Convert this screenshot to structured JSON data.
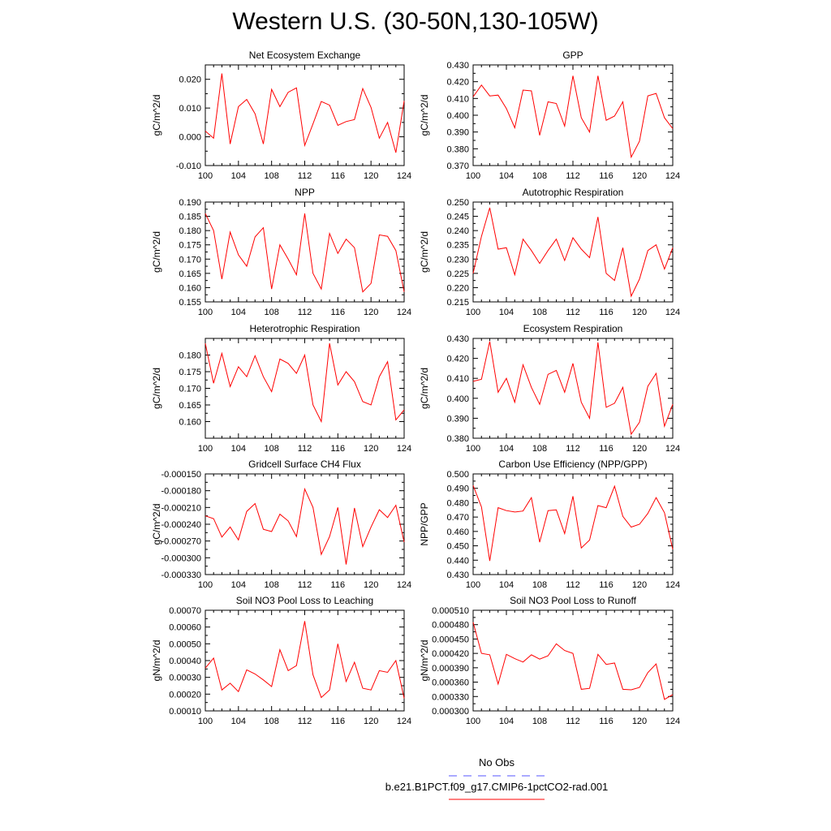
{
  "title": "Western U.S. (30-50N,130-105W)",
  "legend": [
    {
      "label": "No Obs",
      "color": "#5555ff",
      "dash": true
    },
    {
      "label": "b.e21.B1PCT.f09_g17.CMIP6-1pctCO2-rad.001",
      "color": "#ff0000",
      "dash": false
    }
  ],
  "chart_data": [
    {
      "type": "line",
      "title": "Net Ecosystem Exchange",
      "ylabel": "gC/m^2/d",
      "xlabel": "",
      "xlim": [
        100,
        124
      ],
      "ylim": [
        -0.01,
        0.025
      ],
      "xticks": [
        100,
        104,
        108,
        112,
        116,
        120,
        124
      ],
      "yticks": [
        -0.01,
        0.0,
        0.01,
        0.02
      ],
      "ytick_labels": [
        "-0.010",
        "0.000",
        "0.010",
        "0.020"
      ],
      "series": [
        {
          "color": "#ff0000",
          "x": [
            100,
            101,
            102,
            103,
            104,
            105,
            106,
            107,
            108,
            109,
            110,
            111,
            112,
            113,
            114,
            115,
            116,
            117,
            118,
            119,
            120,
            121,
            122,
            123,
            124
          ],
          "y": [
            0.002,
            -0.0005,
            0.022,
            -0.0025,
            0.0105,
            0.013,
            0.008,
            -0.0025,
            0.0165,
            0.0105,
            0.0155,
            0.017,
            -0.003,
            0.0045,
            0.0123,
            0.011,
            0.004,
            0.0053,
            0.006,
            0.0168,
            0.0102,
            -0.0005,
            0.005,
            -0.0055,
            0.0125
          ]
        }
      ]
    },
    {
      "type": "line",
      "title": "GPP",
      "ylabel": "gC/m^2/d",
      "xlabel": "",
      "xlim": [
        100,
        124
      ],
      "ylim": [
        0.37,
        0.43
      ],
      "xticks": [
        100,
        104,
        108,
        112,
        116,
        120,
        124
      ],
      "yticks": [
        0.37,
        0.38,
        0.39,
        0.4,
        0.41,
        0.42,
        0.43
      ],
      "ytick_labels": [
        "0.370",
        "0.380",
        "0.390",
        "0.400",
        "0.410",
        "0.420",
        "0.430"
      ],
      "series": [
        {
          "color": "#ff0000",
          "x": [
            100,
            101,
            102,
            103,
            104,
            105,
            106,
            107,
            108,
            109,
            110,
            111,
            112,
            113,
            114,
            115,
            116,
            117,
            118,
            119,
            120,
            121,
            122,
            123,
            124
          ],
          "y": [
            0.411,
            0.418,
            0.4115,
            0.412,
            0.404,
            0.3925,
            0.415,
            0.4145,
            0.388,
            0.408,
            0.407,
            0.3935,
            0.4235,
            0.3985,
            0.39,
            0.4235,
            0.397,
            0.3995,
            0.408,
            0.375,
            0.3845,
            0.4115,
            0.413,
            0.3985,
            0.392
          ]
        }
      ]
    },
    {
      "type": "line",
      "title": "NPP",
      "ylabel": "gC/m^2/d",
      "xlabel": "",
      "xlim": [
        100,
        124
      ],
      "ylim": [
        0.155,
        0.19
      ],
      "xticks": [
        100,
        104,
        108,
        112,
        116,
        120,
        124
      ],
      "yticks": [
        0.155,
        0.16,
        0.165,
        0.17,
        0.175,
        0.18,
        0.185,
        0.19
      ],
      "ytick_labels": [
        "0.155",
        "0.160",
        "0.165",
        "0.170",
        "0.175",
        "0.180",
        "0.185",
        "0.190"
      ],
      "series": [
        {
          "color": "#ff0000",
          "x": [
            100,
            101,
            102,
            103,
            104,
            105,
            106,
            107,
            108,
            109,
            110,
            111,
            112,
            113,
            114,
            115,
            116,
            117,
            118,
            119,
            120,
            121,
            122,
            123,
            124
          ],
          "y": [
            0.186,
            0.18,
            0.163,
            0.1795,
            0.1715,
            0.1675,
            0.1778,
            0.181,
            0.1595,
            0.175,
            0.17,
            0.1645,
            0.186,
            0.165,
            0.1595,
            0.179,
            0.172,
            0.177,
            0.174,
            0.1585,
            0.1615,
            0.1785,
            0.178,
            0.173,
            0.1585
          ]
        }
      ]
    },
    {
      "type": "line",
      "title": "Autotrophic Respiration",
      "ylabel": "gC/m^2/d",
      "xlabel": "",
      "xlim": [
        100,
        124
      ],
      "ylim": [
        0.215,
        0.25
      ],
      "xticks": [
        100,
        104,
        108,
        112,
        116,
        120,
        124
      ],
      "yticks": [
        0.215,
        0.22,
        0.225,
        0.23,
        0.235,
        0.24,
        0.245,
        0.25
      ],
      "ytick_labels": [
        "0.215",
        "0.220",
        "0.225",
        "0.230",
        "0.235",
        "0.240",
        "0.245",
        "0.250"
      ],
      "series": [
        {
          "color": "#ff0000",
          "x": [
            100,
            101,
            102,
            103,
            104,
            105,
            106,
            107,
            108,
            109,
            110,
            111,
            112,
            113,
            114,
            115,
            116,
            117,
            118,
            119,
            120,
            121,
            122,
            123,
            124
          ],
          "y": [
            0.225,
            0.238,
            0.248,
            0.2335,
            0.234,
            0.2245,
            0.237,
            0.233,
            0.2285,
            0.233,
            0.237,
            0.2295,
            0.2375,
            0.2335,
            0.2305,
            0.2448,
            0.225,
            0.2225,
            0.234,
            0.217,
            0.223,
            0.233,
            0.235,
            0.2265,
            0.234
          ]
        }
      ]
    },
    {
      "type": "line",
      "title": "Heterotrophic Respiration",
      "ylabel": "gC/m^2/d",
      "xlabel": "",
      "xlim": [
        100,
        124
      ],
      "ylim": [
        0.155,
        0.185
      ],
      "xticks": [
        100,
        104,
        108,
        112,
        116,
        120,
        124
      ],
      "yticks": [
        0.16,
        0.165,
        0.17,
        0.175,
        0.18
      ],
      "ytick_labels": [
        "0.160",
        "0.165",
        "0.170",
        "0.175",
        "0.180"
      ],
      "series": [
        {
          "color": "#ff0000",
          "x": [
            100,
            101,
            102,
            103,
            104,
            105,
            106,
            107,
            108,
            109,
            110,
            111,
            112,
            113,
            114,
            115,
            116,
            117,
            118,
            119,
            120,
            121,
            122,
            123,
            124
          ],
          "y": [
            0.1835,
            0.1715,
            0.1805,
            0.1705,
            0.1765,
            0.1735,
            0.1798,
            0.1735,
            0.169,
            0.1788,
            0.1775,
            0.1745,
            0.18,
            0.165,
            0.16,
            0.1835,
            0.171,
            0.175,
            0.172,
            0.166,
            0.165,
            0.1735,
            0.178,
            0.1605,
            0.1635
          ]
        }
      ]
    },
    {
      "type": "line",
      "title": "Ecosystem Respiration",
      "ylabel": "gC/m^2/d",
      "xlabel": "",
      "xlim": [
        100,
        124
      ],
      "ylim": [
        0.38,
        0.43
      ],
      "xticks": [
        100,
        104,
        108,
        112,
        116,
        120,
        124
      ],
      "yticks": [
        0.38,
        0.39,
        0.4,
        0.41,
        0.42,
        0.43
      ],
      "ytick_labels": [
        "0.380",
        "0.390",
        "0.400",
        "0.410",
        "0.420",
        "0.430"
      ],
      "series": [
        {
          "color": "#ff0000",
          "x": [
            100,
            101,
            102,
            103,
            104,
            105,
            106,
            107,
            108,
            109,
            110,
            111,
            112,
            113,
            114,
            115,
            116,
            117,
            118,
            119,
            120,
            121,
            122,
            123,
            124
          ],
          "y": [
            0.4085,
            0.4095,
            0.4285,
            0.403,
            0.41,
            0.398,
            0.4168,
            0.4055,
            0.397,
            0.412,
            0.414,
            0.403,
            0.4175,
            0.398,
            0.39,
            0.428,
            0.3955,
            0.3975,
            0.4055,
            0.382,
            0.388,
            0.406,
            0.4125,
            0.386,
            0.397
          ]
        }
      ]
    },
    {
      "type": "line",
      "title": "Gridcell Surface CH4 Flux",
      "ylabel": "gC/m^2/d",
      "xlabel": "",
      "xlim": [
        100,
        124
      ],
      "ylim": [
        -0.00033,
        -0.00015
      ],
      "xticks": [
        100,
        104,
        108,
        112,
        116,
        120,
        124
      ],
      "yticks": [
        -0.00033,
        -0.0003,
        -0.00027,
        -0.00024,
        -0.00021,
        -0.00018,
        -0.00015
      ],
      "ytick_labels": [
        "-0.000330",
        "-0.000300",
        "-0.000270",
        "-0.000240",
        "-0.000210",
        "-0.000180",
        "-0.000150"
      ],
      "series": [
        {
          "color": "#ff0000",
          "x": [
            100,
            101,
            102,
            103,
            104,
            105,
            106,
            107,
            108,
            109,
            110,
            111,
            112,
            113,
            114,
            115,
            116,
            117,
            118,
            119,
            120,
            121,
            122,
            123,
            124
          ],
          "y": [
            -0.000225,
            -0.00023,
            -0.000263,
            -0.000245,
            -0.000268,
            -0.000217,
            -0.000203,
            -0.000249,
            -0.000253,
            -0.000222,
            -0.000234,
            -0.000262,
            -0.000177,
            -0.00021,
            -0.000294,
            -0.000262,
            -0.00021,
            -0.000312,
            -0.000211,
            -0.00028,
            -0.000245,
            -0.000214,
            -0.000228,
            -0.000206,
            -0.000272
          ]
        }
      ]
    },
    {
      "type": "line",
      "title": "Carbon Use Efficiency (NPP/GPP)",
      "ylabel": "NPP/GPP",
      "xlabel": "",
      "xlim": [
        100,
        124
      ],
      "ylim": [
        0.43,
        0.5
      ],
      "xticks": [
        100,
        104,
        108,
        112,
        116,
        120,
        124
      ],
      "yticks": [
        0.43,
        0.44,
        0.45,
        0.46,
        0.47,
        0.48,
        0.49,
        0.5
      ],
      "ytick_labels": [
        "0.430",
        "0.440",
        "0.450",
        "0.460",
        "0.470",
        "0.480",
        "0.490",
        "0.500"
      ],
      "series": [
        {
          "color": "#ff0000",
          "x": [
            100,
            101,
            102,
            103,
            104,
            105,
            106,
            107,
            108,
            109,
            110,
            111,
            112,
            113,
            114,
            115,
            116,
            117,
            118,
            119,
            120,
            121,
            122,
            123,
            124
          ],
          "y": [
            0.492,
            0.477,
            0.4395,
            0.4765,
            0.4745,
            0.4735,
            0.4742,
            0.4835,
            0.4525,
            0.4745,
            0.475,
            0.4585,
            0.4845,
            0.4485,
            0.454,
            0.478,
            0.4765,
            0.4915,
            0.4705,
            0.463,
            0.465,
            0.4725,
            0.4835,
            0.473,
            0.4475
          ]
        }
      ]
    },
    {
      "type": "line",
      "title": "Soil NO3 Pool Loss to Leaching",
      "ylabel": "gN/m^2/d",
      "xlabel": "",
      "xlim": [
        100,
        124
      ],
      "ylim": [
        0.0001,
        0.0007
      ],
      "xticks": [
        100,
        104,
        108,
        112,
        116,
        120,
        124
      ],
      "yticks": [
        0.0001,
        0.0002,
        0.0003,
        0.0004,
        0.0005,
        0.0006,
        0.0007
      ],
      "ytick_labels": [
        "0.00010",
        "0.00020",
        "0.00030",
        "0.00040",
        "0.00050",
        "0.00060",
        "0.00070"
      ],
      "series": [
        {
          "color": "#ff0000",
          "x": [
            100,
            101,
            102,
            103,
            104,
            105,
            106,
            107,
            108,
            109,
            110,
            111,
            112,
            113,
            114,
            115,
            116,
            117,
            118,
            119,
            120,
            121,
            122,
            123,
            124
          ],
          "y": [
            0.000355,
            0.000415,
            0.000225,
            0.000265,
            0.000215,
            0.000345,
            0.00032,
            0.000285,
            0.000245,
            0.000465,
            0.00034,
            0.00037,
            0.000635,
            0.000315,
            0.00018,
            0.000225,
            0.0005,
            0.000275,
            0.00039,
            0.000235,
            0.000225,
            0.00034,
            0.00033,
            0.0004,
            0.000175
          ]
        }
      ]
    },
    {
      "type": "line",
      "title": "Soil NO3 Pool Loss to Runoff",
      "ylabel": "gN/m^2/d",
      "xlabel": "",
      "xlim": [
        100,
        124
      ],
      "ylim": [
        0.0003,
        0.00051
      ],
      "xticks": [
        100,
        104,
        108,
        112,
        116,
        120,
        124
      ],
      "yticks": [
        0.0003,
        0.00033,
        0.00036,
        0.00039,
        0.00042,
        0.00045,
        0.00048,
        0.00051
      ],
      "ytick_labels": [
        "0.000300",
        "0.000330",
        "0.000360",
        "0.000390",
        "0.000420",
        "0.000450",
        "0.000480",
        "0.000510"
      ],
      "series": [
        {
          "color": "#ff0000",
          "x": [
            100,
            101,
            102,
            103,
            104,
            105,
            106,
            107,
            108,
            109,
            110,
            111,
            112,
            113,
            114,
            115,
            116,
            117,
            118,
            119,
            120,
            121,
            122,
            123,
            124
          ],
          "y": [
            0.000485,
            0.00042,
            0.000417,
            0.000356,
            0.000418,
            0.000409,
            0.000402,
            0.000417,
            0.000408,
            0.000415,
            0.00044,
            0.000426,
            0.00042,
            0.000345,
            0.000347,
            0.000418,
            0.000397,
            0.0004,
            0.000345,
            0.000344,
            0.000349,
            0.00038,
            0.000398,
            0.000324,
            0.000334
          ]
        }
      ]
    }
  ]
}
